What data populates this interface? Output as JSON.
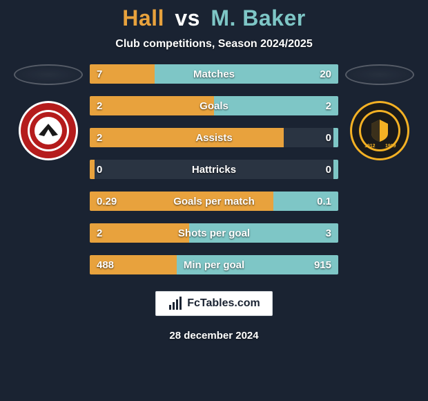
{
  "title": {
    "player1": "Hall",
    "vs": "vs",
    "player2": "M. Baker"
  },
  "subtitle": "Club competitions, Season 2024/2025",
  "colors": {
    "player1": "#e8a23d",
    "player2": "#7ec6c6",
    "bar_bg": "#2a3442",
    "page_bg": "#1a2332",
    "text": "#ffffff"
  },
  "crest_left": {
    "outer": "#b51c1c",
    "ring_outer": "#ffffff",
    "ring_inner": "#b51c1c",
    "center": "#ffffff",
    "accent": "#1a1a1a"
  },
  "crest_right": {
    "outer": "#1a1a1a",
    "ring": "#f4b124",
    "center": "#1a1a1a",
    "shield": "#f4b124",
    "year1": "1912",
    "year2": "1989"
  },
  "stats": [
    {
      "label": "Matches",
      "l": "7",
      "r": "20",
      "lw": 26,
      "rw": 74
    },
    {
      "label": "Goals",
      "l": "2",
      "r": "2",
      "lw": 50,
      "rw": 50
    },
    {
      "label": "Assists",
      "l": "2",
      "r": "0",
      "lw": 78,
      "rw": 2
    },
    {
      "label": "Hattricks",
      "l": "0",
      "r": "0",
      "lw": 2,
      "rw": 2
    },
    {
      "label": "Goals per match",
      "l": "0.29",
      "r": "0.1",
      "lw": 74,
      "rw": 26
    },
    {
      "label": "Shots per goal",
      "l": "2",
      "r": "3",
      "lw": 40,
      "rw": 60
    },
    {
      "label": "Min per goal",
      "l": "488",
      "r": "915",
      "lw": 35,
      "rw": 65
    }
  ],
  "footer": {
    "brand": "FcTables.com"
  },
  "date": "28 december 2024"
}
